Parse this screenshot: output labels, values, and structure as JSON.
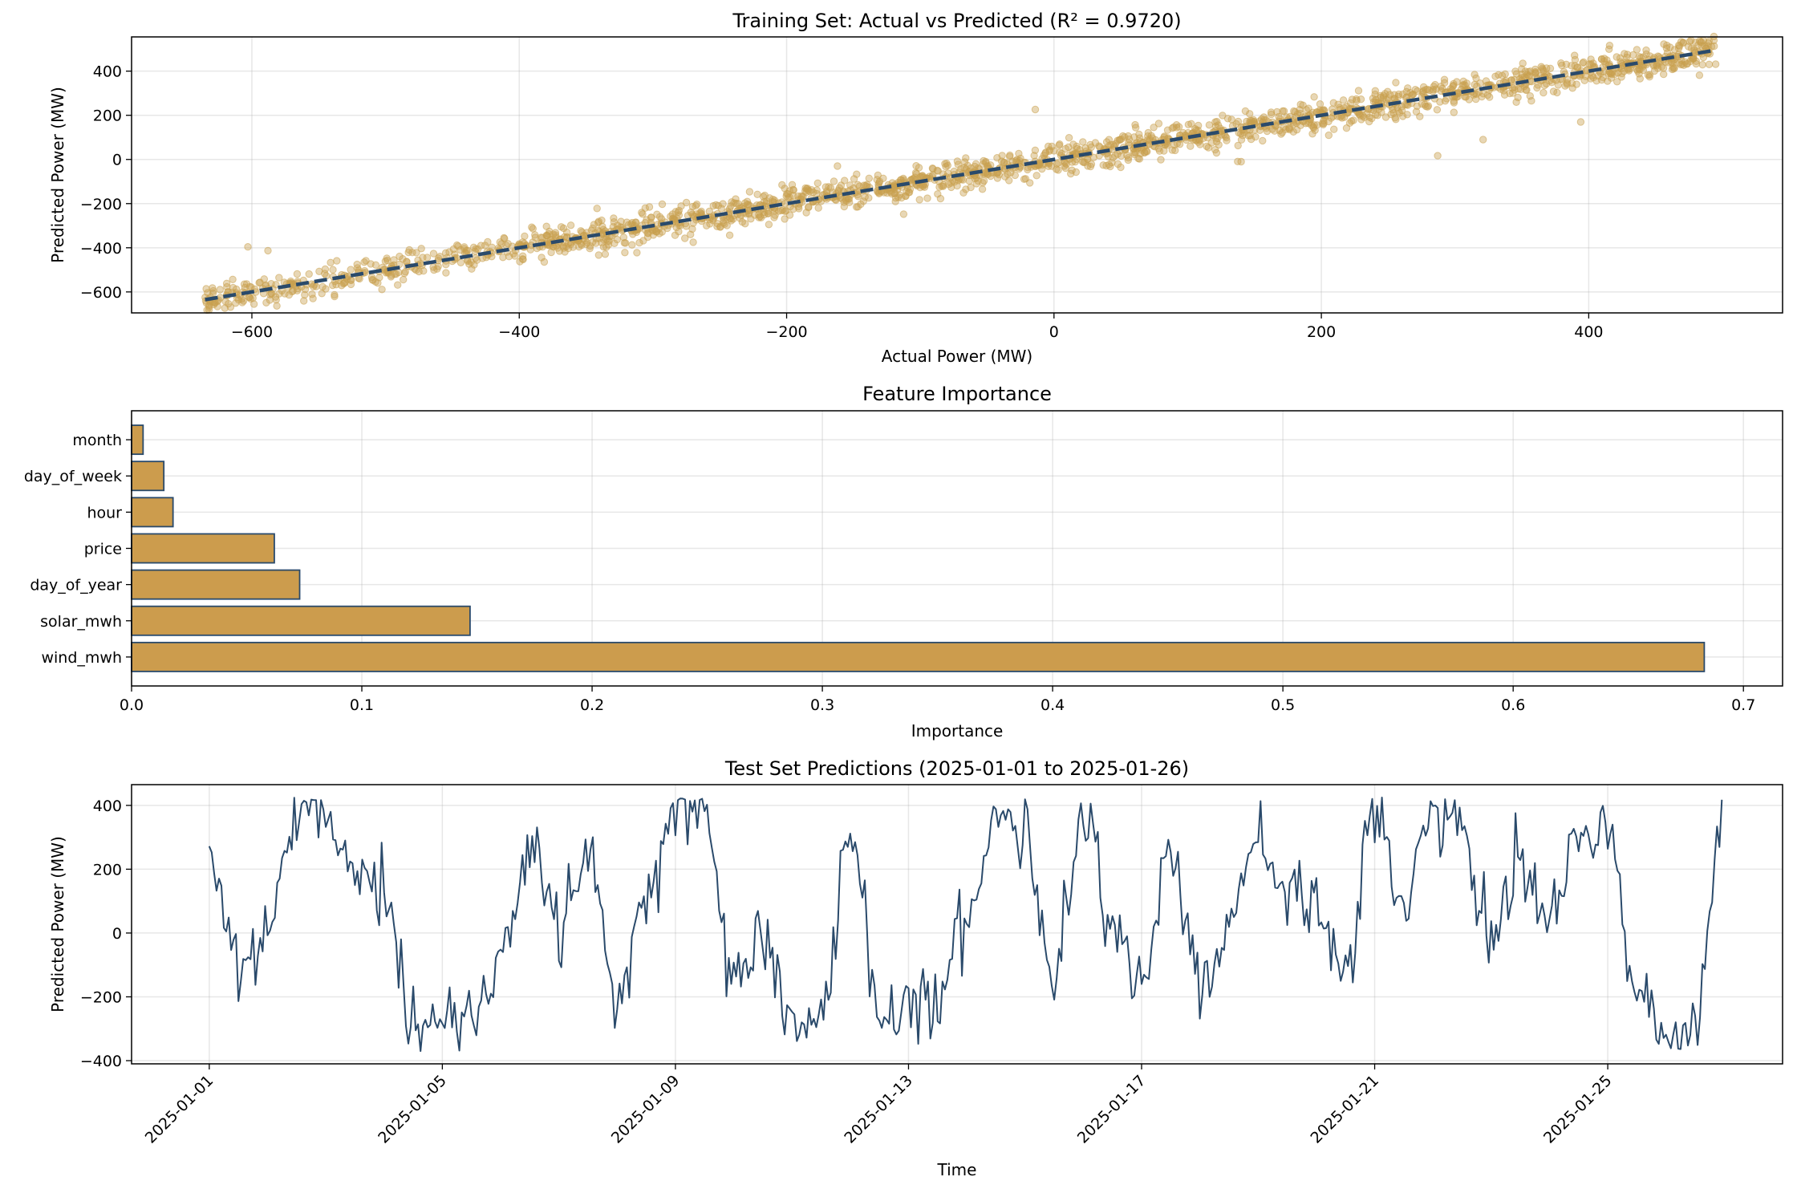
{
  "colors": {
    "gold": "#c9a04f",
    "navy": "#2a4a6b",
    "bar_fill": "#cc9c4d",
    "bar_edge": "#2a4a6b"
  },
  "chart_data": [
    {
      "type": "scatter",
      "title": "Training Set: Actual vs Predicted (R² = 0.9720)",
      "xlabel": "Actual Power (MW)",
      "ylabel": "Predicted Power (MW)",
      "xlim": [
        -690,
        545
      ],
      "ylim": [
        -695,
        555
      ],
      "xticks": [
        -600,
        -400,
        -200,
        0,
        200,
        400
      ],
      "yticks": [
        -600,
        -400,
        -200,
        0,
        200,
        400
      ],
      "grid": true,
      "reference_line": {
        "style": "dashed",
        "x": [
          -635,
          495
        ],
        "y": [
          -635,
          495
        ]
      },
      "points": {
        "count_approx": 2000,
        "x_range": [
          -635,
          495
        ],
        "relationship": "predicted ≈ actual",
        "noise_sd_approx": 35,
        "outliers": [
          [
            -603,
            -396
          ],
          [
            -588,
            -413
          ],
          [
            -312,
            -422
          ],
          [
            -162,
            -30
          ],
          [
            -14,
            226
          ],
          [
            102,
            60
          ],
          [
            287,
            17
          ],
          [
            321,
            90
          ],
          [
            394,
            170
          ],
          [
            140,
            -10
          ]
        ]
      }
    },
    {
      "type": "bar",
      "orientation": "horizontal",
      "title": "Feature Importance",
      "xlabel": "Importance",
      "categories": [
        "month",
        "day_of_week",
        "hour",
        "price",
        "day_of_year",
        "solar_mwh",
        "wind_mwh"
      ],
      "values": [
        0.005,
        0.014,
        0.018,
        0.062,
        0.073,
        0.147,
        0.683
      ],
      "xlim": [
        0,
        0.717
      ],
      "xticks": [
        0.0,
        0.1,
        0.2,
        0.3,
        0.4,
        0.5,
        0.6,
        0.7
      ],
      "grid": true
    },
    {
      "type": "line",
      "title": "Test Set Predictions (2025-01-01 to 2025-01-26)",
      "xlabel": "Time",
      "ylabel": "Predicted Power (MW)",
      "x_start": "2025-01-01",
      "x_end": "2025-01-26 23:00",
      "xlim": [
        "2024-12-30 16:00",
        "2025-01-28 00:00"
      ],
      "ylim": [
        -410,
        465
      ],
      "xticks": [
        "2025-01-01",
        "2025-01-05",
        "2025-01-09",
        "2025-01-13",
        "2025-01-17",
        "2025-01-21",
        "2025-01-25"
      ],
      "yticks": [
        -400,
        -200,
        0,
        200,
        400
      ],
      "grid": true,
      "series": [
        {
          "anchor_day": [
            "2025-01-01",
            "2025-01-01 12:00",
            "2025-01-02",
            "2025-01-02 12:00",
            "2025-01-03",
            "2025-01-03 12:00",
            "2025-01-04",
            "2025-01-04 12:00",
            "2025-01-05",
            "2025-01-05 12:00",
            "2025-01-06",
            "2025-01-06 12:00",
            "2025-01-07",
            "2025-01-07 12:00",
            "2025-01-08",
            "2025-01-08 12:00",
            "2025-01-09",
            "2025-01-09 12:00",
            "2025-01-10",
            "2025-01-10 12:00",
            "2025-01-11",
            "2025-01-11 12:00",
            "2025-01-12",
            "2025-01-12 12:00",
            "2025-01-13",
            "2025-01-13 12:00",
            "2025-01-14",
            "2025-01-14 12:00",
            "2025-01-15",
            "2025-01-15 12:00",
            "2025-01-16",
            "2025-01-16 12:00",
            "2025-01-17",
            "2025-01-17 12:00",
            "2025-01-18",
            "2025-01-18 12:00",
            "2025-01-19",
            "2025-01-19 12:00",
            "2025-01-20",
            "2025-01-20 12:00",
            "2025-01-21",
            "2025-01-21 12:00",
            "2025-01-22",
            "2025-01-22 12:00",
            "2025-01-23",
            "2025-01-23 12:00",
            "2025-01-24",
            "2025-01-24 12:00",
            "2025-01-25",
            "2025-01-25 12:00",
            "2025-01-26",
            "2025-01-26 12:00",
            "2025-01-26 23:00"
          ],
          "anchor_val": [
            270,
            -100,
            10,
            360,
            360,
            160,
            150,
            -290,
            -290,
            -290,
            -60,
            300,
            20,
            270,
            -180,
            100,
            420,
            380,
            -150,
            0,
            -280,
            -290,
            360,
            -260,
            -200,
            -220,
            50,
            380,
            300,
            -150,
            380,
            30,
            -150,
            280,
            -200,
            50,
            300,
            120,
            120,
            -150,
            400,
            100,
            400,
            350,
            -20,
            200,
            50,
            300,
            350,
            -200,
            -330,
            -320,
            340
          ]
        }
      ]
    }
  ]
}
